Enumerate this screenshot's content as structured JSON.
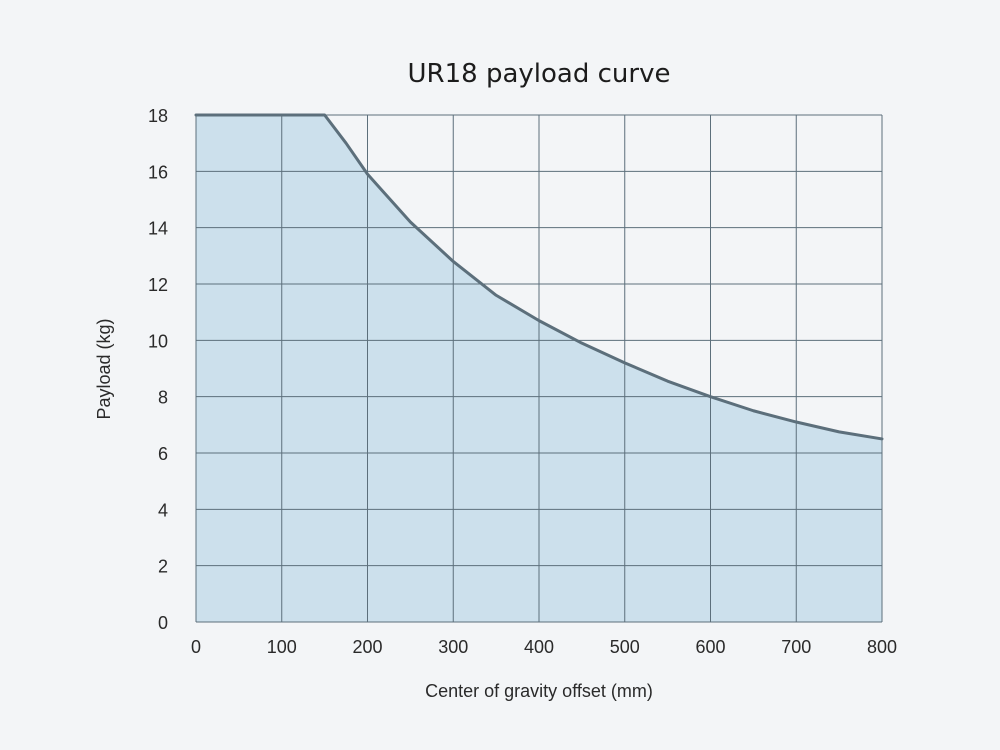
{
  "chart_data": {
    "type": "area",
    "title": "UR18 payload curve",
    "xlabel": "Center of gravity offset (mm)",
    "ylabel": "Payload (kg)",
    "xlim": [
      0,
      800
    ],
    "ylim": [
      0,
      18
    ],
    "x_ticks": [
      0,
      100,
      200,
      300,
      400,
      500,
      600,
      700,
      800
    ],
    "y_ticks": [
      0,
      2,
      4,
      6,
      8,
      10,
      12,
      14,
      16,
      18
    ],
    "grid": true,
    "series": [
      {
        "x": [
          0,
          150,
          175,
          200,
          250,
          300,
          350,
          400,
          450,
          500,
          550,
          600,
          650,
          700,
          750,
          800
        ],
        "y": [
          18,
          18,
          17.0,
          15.9,
          14.2,
          12.8,
          11.6,
          10.7,
          9.9,
          9.2,
          8.55,
          8.0,
          7.5,
          7.1,
          6.75,
          6.5
        ]
      }
    ],
    "colors": {
      "fill": "#cce0ec",
      "line": "#5c6f7b",
      "grid": "#5c6f7b",
      "background": "#f3f5f7"
    }
  }
}
